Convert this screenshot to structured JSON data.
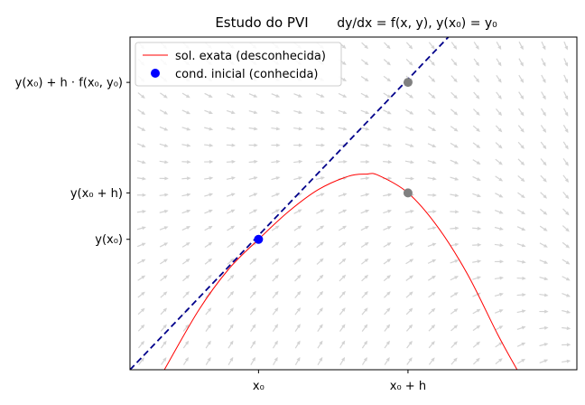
{
  "chart_data": {
    "type": "line",
    "title": "Estudo do PVI",
    "title_equation": "dy/dx = f(x, y),  y(x₀) = y₀",
    "xlabel": "",
    "ylabel": "",
    "x_ticks": [
      "x₀",
      "x₀ + h"
    ],
    "y_ticks": [
      "y(x₀)",
      "y(x₀ + h)",
      "y(x₀) + h · f(x₀, y₀)"
    ],
    "x_tick_values": [
      0,
      1
    ],
    "y_tick_values": [
      0,
      0.42,
      1.42
    ],
    "xlim": [
      -0.86,
      2.13
    ],
    "ylim": [
      -1.18,
      1.83
    ],
    "grid": false,
    "legend_position": "upper left",
    "legend": [
      {
        "label": "sol. exata (desconhecida)",
        "marker": "line",
        "color": "#ff0000"
      },
      {
        "label": "cond. inicial (conhecida)",
        "marker": "dot",
        "color": "#0000ff"
      }
    ],
    "series": [
      {
        "name": "sol. exata (desconhecida)",
        "color": "#ff0000",
        "style": "solid",
        "x": [
          -0.63,
          -0.4,
          -0.2,
          0.0,
          0.2,
          0.4,
          0.6,
          0.72,
          0.8,
          1.0,
          1.2,
          1.4,
          1.6,
          1.73
        ],
        "y": [
          -1.18,
          -0.64,
          -0.27,
          0.0,
          0.25,
          0.45,
          0.57,
          0.59,
          0.58,
          0.42,
          0.11,
          -0.32,
          -0.86,
          -1.18
        ]
      },
      {
        "name": "",
        "color": "#00008b",
        "style": "dashed",
        "x": [
          -0.86,
          1.27
        ],
        "y": [
          -1.18,
          1.83
        ]
      }
    ],
    "points": [
      {
        "x": 0,
        "y": 0,
        "color": "#0000ff"
      },
      {
        "x": 1,
        "y": 0.42,
        "color": "#808080"
      },
      {
        "x": 1,
        "y": 1.42,
        "color": "#808080"
      }
    ],
    "direction_field": {
      "color": "#d3d3d3",
      "columns": 20,
      "rows": 20
    }
  }
}
